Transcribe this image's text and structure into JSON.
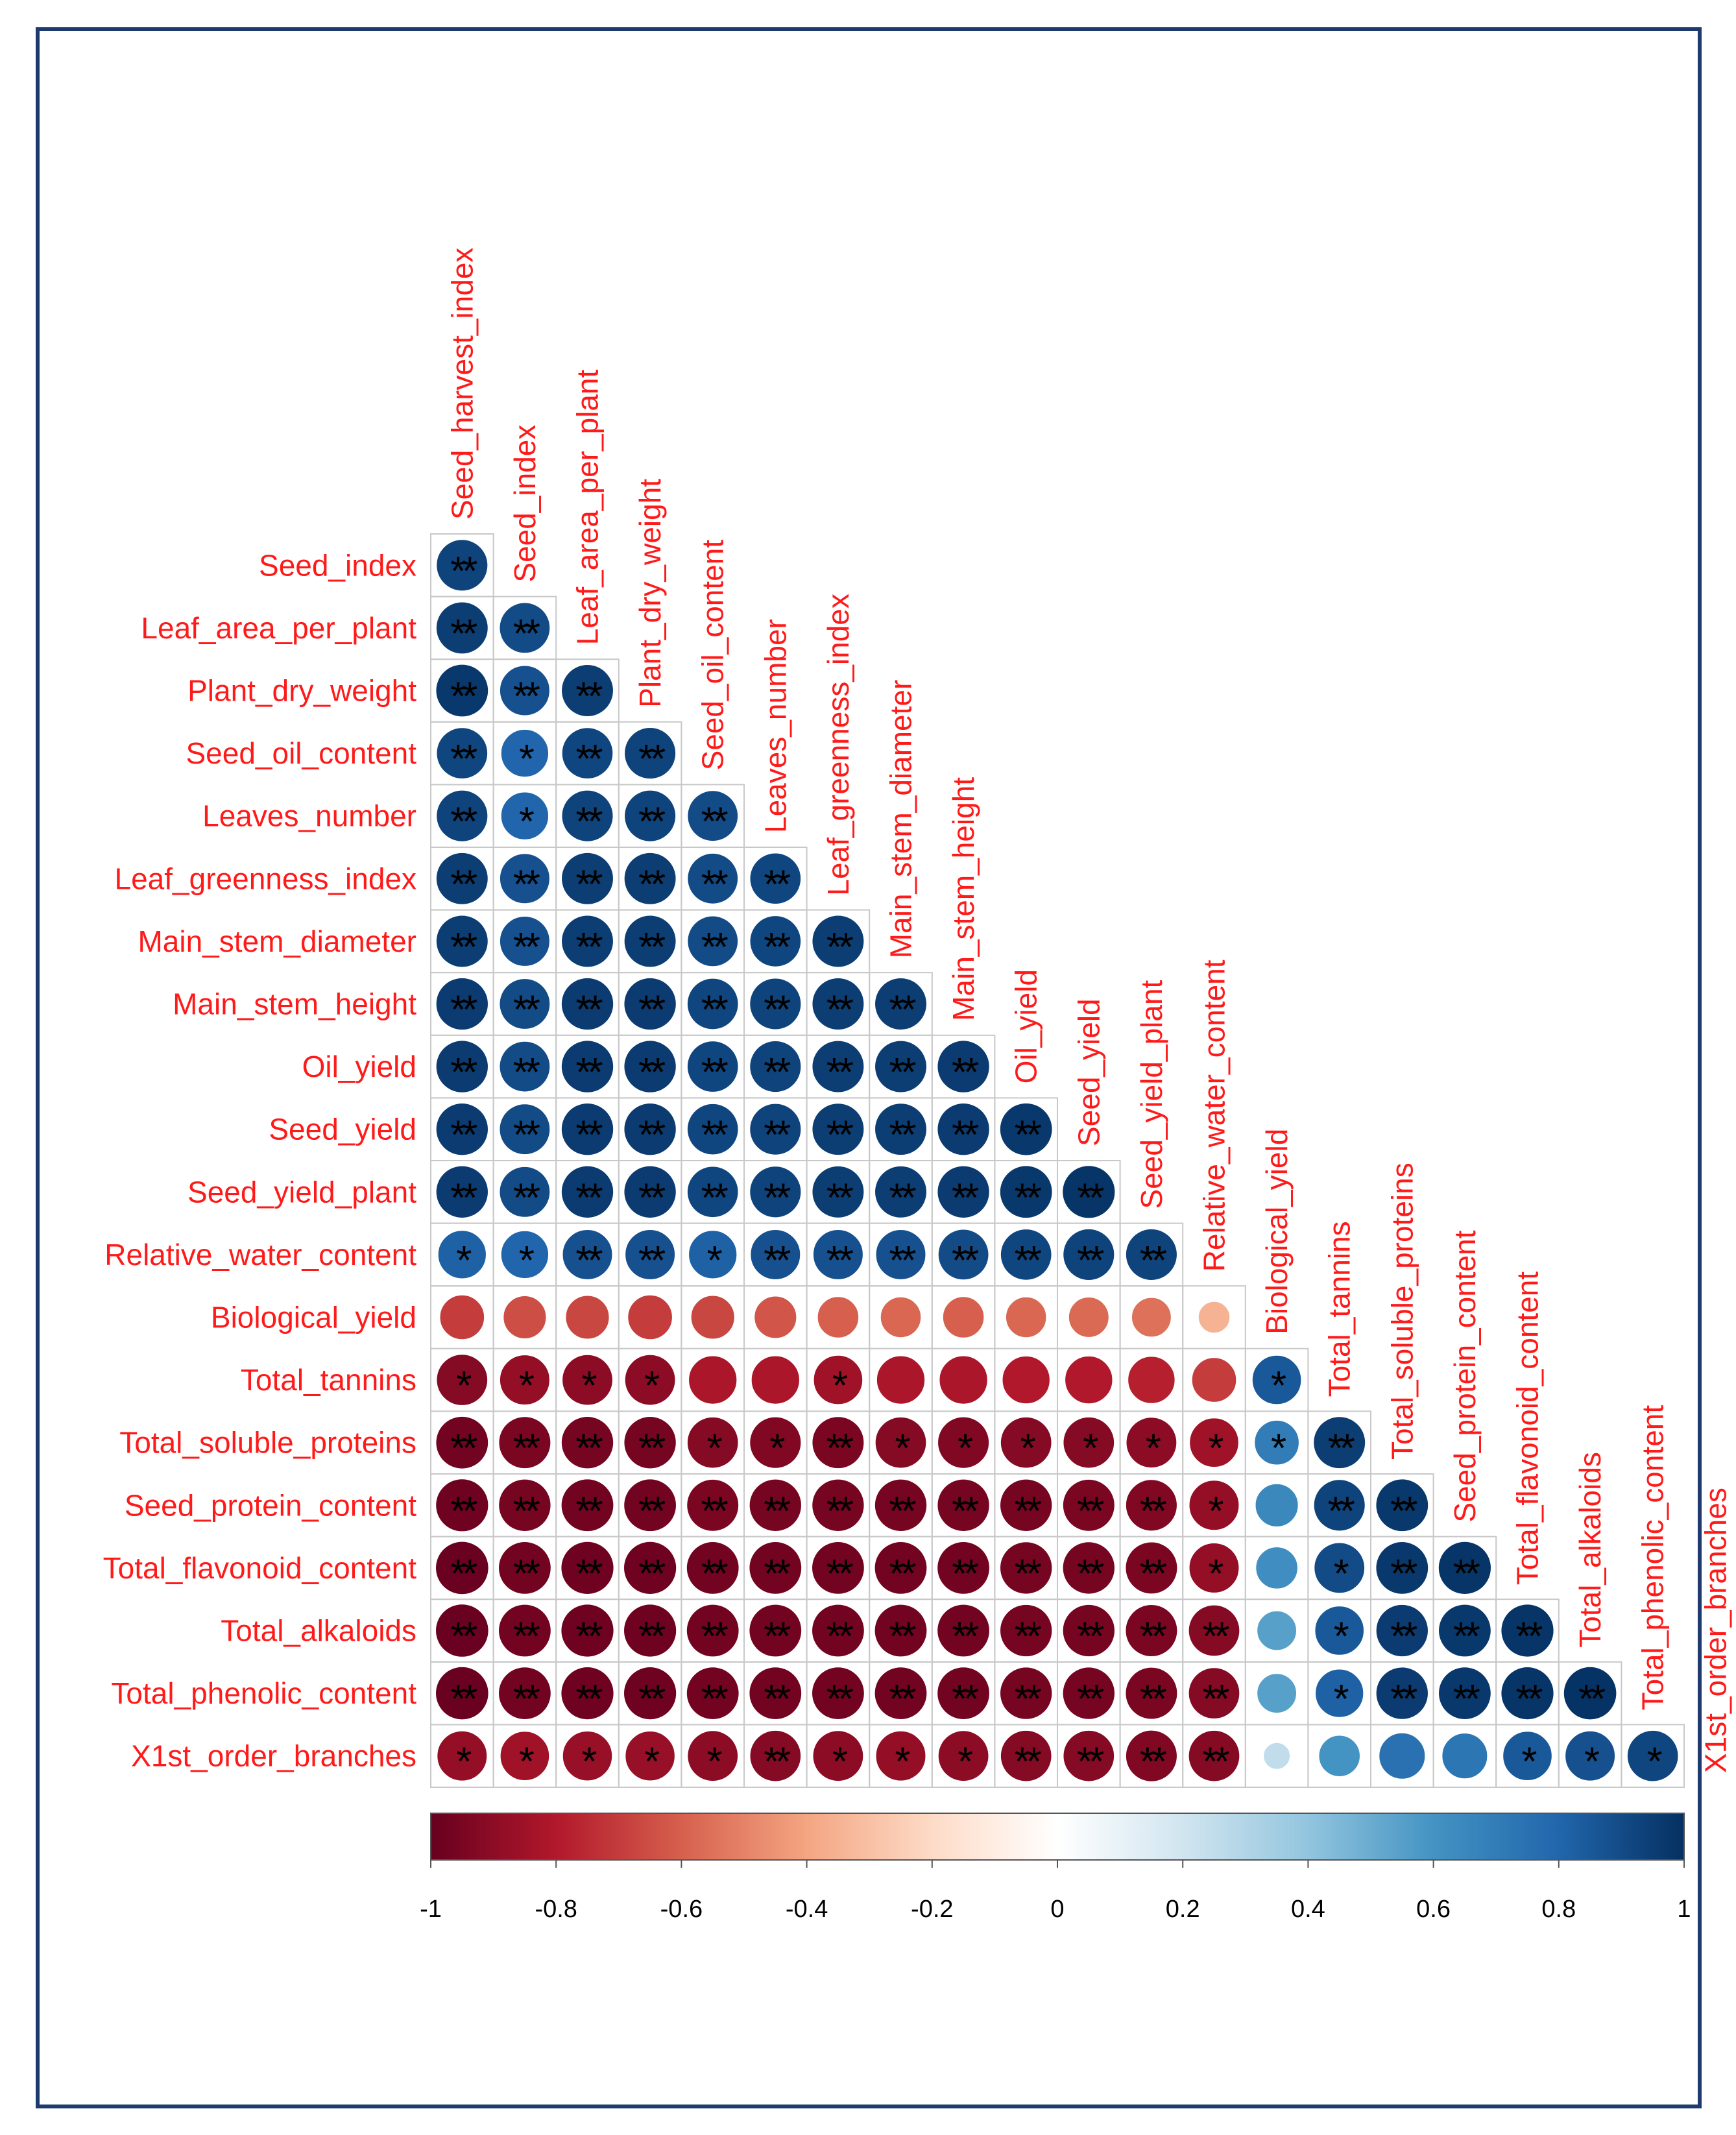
{
  "chart_data": {
    "type": "correlogram",
    "variables": [
      "Seed_harvest_index",
      "Seed_index",
      "Leaf_area_per_plant",
      "Plant_dry_weight",
      "Seed_oil_content",
      "Leaves_number",
      "Leaf_greenness_index",
      "Main_stem_diameter",
      "Main_stem_height",
      "Oil_yield",
      "Seed_yield",
      "Seed_yield_plant",
      "Relative_water_content",
      "Biological_yield",
      "Total_tannins",
      "Total_soluble_proteins",
      "Seed_protein_content",
      "Total_flavonoid_content",
      "Total_alkaloids",
      "Total_phenolic_content",
      "X1st_order_branches"
    ],
    "correlations": [
      [
        0.93
      ],
      [
        0.95,
        0.9
      ],
      [
        0.97,
        0.88,
        0.95
      ],
      [
        0.92,
        0.8,
        0.92,
        0.93
      ],
      [
        0.93,
        0.8,
        0.93,
        0.93,
        0.9
      ],
      [
        0.95,
        0.88,
        0.95,
        0.95,
        0.9,
        0.92
      ],
      [
        0.95,
        0.88,
        0.95,
        0.95,
        0.9,
        0.92,
        0.95
      ],
      [
        0.96,
        0.9,
        0.96,
        0.96,
        0.92,
        0.93,
        0.95,
        0.95
      ],
      [
        0.96,
        0.9,
        0.96,
        0.96,
        0.92,
        0.93,
        0.95,
        0.95,
        0.96
      ],
      [
        0.96,
        0.9,
        0.96,
        0.96,
        0.92,
        0.93,
        0.95,
        0.95,
        0.96,
        0.97
      ],
      [
        0.96,
        0.9,
        0.96,
        0.96,
        0.92,
        0.93,
        0.95,
        0.95,
        0.96,
        0.97,
        0.98
      ],
      [
        0.82,
        0.8,
        0.88,
        0.88,
        0.82,
        0.88,
        0.88,
        0.88,
        0.9,
        0.92,
        0.93,
        0.93
      ],
      [
        -0.7,
        -0.65,
        -0.67,
        -0.7,
        -0.67,
        -0.63,
        -0.6,
        -0.58,
        -0.6,
        -0.58,
        -0.57,
        -0.55,
        -0.35
      ],
      [
        -0.92,
        -0.88,
        -0.9,
        -0.9,
        -0.82,
        -0.82,
        -0.85,
        -0.82,
        -0.82,
        -0.8,
        -0.8,
        -0.78,
        -0.7,
        0.85
      ],
      [
        -0.97,
        -0.95,
        -0.96,
        -0.96,
        -0.92,
        -0.93,
        -0.95,
        -0.92,
        -0.93,
        -0.92,
        -0.92,
        -0.9,
        -0.85,
        0.7,
        0.95
      ],
      [
        -0.98,
        -0.96,
        -0.97,
        -0.97,
        -0.95,
        -0.96,
        -0.96,
        -0.96,
        -0.96,
        -0.96,
        -0.95,
        -0.93,
        -0.88,
        0.65,
        0.93,
        0.97
      ],
      [
        -0.99,
        -0.97,
        -0.98,
        -0.98,
        -0.97,
        -0.97,
        -0.97,
        -0.97,
        -0.97,
        -0.96,
        -0.96,
        -0.95,
        -0.88,
        0.62,
        0.9,
        0.97,
        0.98
      ],
      [
        -0.99,
        -0.97,
        -0.98,
        -0.98,
        -0.97,
        -0.97,
        -0.97,
        -0.97,
        -0.97,
        -0.96,
        -0.96,
        -0.95,
        -0.92,
        0.55,
        0.85,
        0.96,
        0.97,
        0.98
      ],
      [
        -0.99,
        -0.97,
        -0.98,
        -0.98,
        -0.97,
        -0.97,
        -0.97,
        -0.97,
        -0.97,
        -0.96,
        -0.96,
        -0.95,
        -0.92,
        0.55,
        0.82,
        0.96,
        0.97,
        0.98,
        0.99
      ],
      [
        -0.88,
        -0.85,
        -0.87,
        -0.87,
        -0.9,
        -0.92,
        -0.9,
        -0.88,
        -0.9,
        -0.92,
        -0.92,
        -0.93,
        -0.92,
        0.25,
        0.6,
        0.75,
        0.73,
        0.85,
        0.88,
        0.92
      ]
    ],
    "significance": [
      [
        "**"
      ],
      [
        "**",
        "**"
      ],
      [
        "**",
        "**",
        "**"
      ],
      [
        "**",
        "*",
        "**",
        "**"
      ],
      [
        "**",
        "*",
        "**",
        "**",
        "**"
      ],
      [
        "**",
        "**",
        "**",
        "**",
        "**",
        "**"
      ],
      [
        "**",
        "**",
        "**",
        "**",
        "**",
        "**",
        "**"
      ],
      [
        "**",
        "**",
        "**",
        "**",
        "**",
        "**",
        "**",
        "**"
      ],
      [
        "**",
        "**",
        "**",
        "**",
        "**",
        "**",
        "**",
        "**",
        "**"
      ],
      [
        "**",
        "**",
        "**",
        "**",
        "**",
        "**",
        "**",
        "**",
        "**",
        "**"
      ],
      [
        "**",
        "**",
        "**",
        "**",
        "**",
        "**",
        "**",
        "**",
        "**",
        "**",
        "**"
      ],
      [
        "*",
        "*",
        "**",
        "**",
        "*",
        "**",
        "**",
        "**",
        "**",
        "**",
        "**",
        "**"
      ],
      [
        "",
        "",
        "",
        "",
        "",
        "",
        "",
        "",
        "",
        "",
        "",
        "",
        ""
      ],
      [
        "*",
        "*",
        "*",
        "*",
        "",
        "",
        "*",
        "",
        "",
        "",
        "",
        "",
        "",
        "*"
      ],
      [
        "**",
        "**",
        "**",
        "**",
        "*",
        "*",
        "**",
        "*",
        "*",
        "*",
        "*",
        "*",
        "*",
        "*",
        "**"
      ],
      [
        "**",
        "**",
        "**",
        "**",
        "**",
        "**",
        "**",
        "**",
        "**",
        "**",
        "**",
        "**",
        "*",
        "",
        "**",
        "**"
      ],
      [
        "**",
        "**",
        "**",
        "**",
        "**",
        "**",
        "**",
        "**",
        "**",
        "**",
        "**",
        "**",
        "*",
        "",
        "*",
        "**",
        "**"
      ],
      [
        "**",
        "**",
        "**",
        "**",
        "**",
        "**",
        "**",
        "**",
        "**",
        "**",
        "**",
        "**",
        "**",
        "",
        "*",
        "**",
        "**",
        "**"
      ],
      [
        "**",
        "**",
        "**",
        "**",
        "**",
        "**",
        "**",
        "**",
        "**",
        "**",
        "**",
        "**",
        "**",
        "",
        "*",
        "**",
        "**",
        "**",
        "**"
      ],
      [
        "*",
        "*",
        "*",
        "*",
        "*",
        "**",
        "*",
        "*",
        "*",
        "**",
        "**",
        "**",
        "**",
        "",
        "",
        "",
        "",
        "*",
        "*",
        "*"
      ]
    ],
    "colorbar": {
      "ticks": [
        "-1",
        "-0.8",
        "-0.6",
        "-0.4",
        "-0.2",
        "0",
        "0.2",
        "0.4",
        "0.6",
        "0.8",
        "1"
      ],
      "range": [
        -1,
        1
      ]
    },
    "colors": {
      "label": "#ff1a1a",
      "frame": "#1f3a6e",
      "grid": "#c8c8c8",
      "scale": [
        "#67001f",
        "#b2182b",
        "#d6604d",
        "#f4a582",
        "#fddbc7",
        "#ffffff",
        "#d1e5f0",
        "#92c5de",
        "#4393c3",
        "#2166ac",
        "#053061"
      ]
    }
  }
}
